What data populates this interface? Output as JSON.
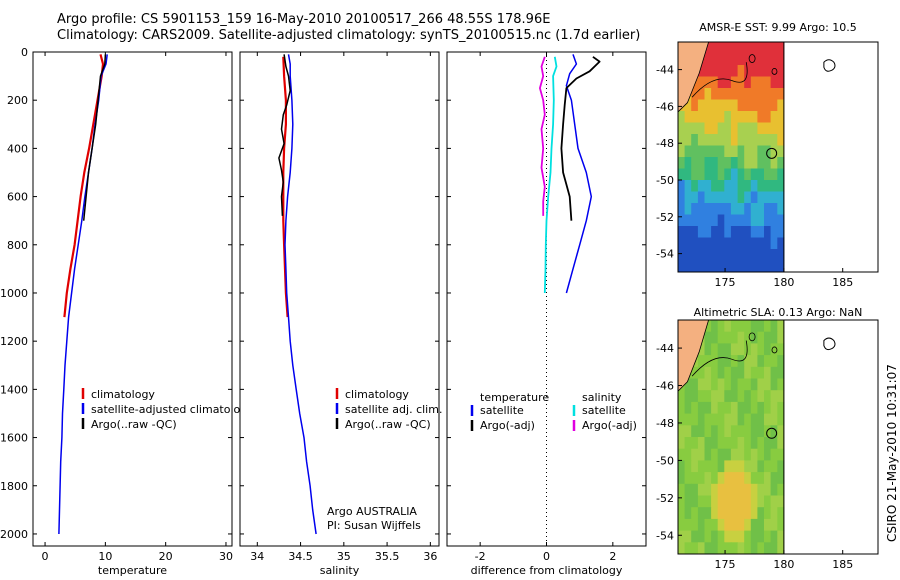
{
  "header": {
    "line1": "Argo profile: CS 5901153_159 16-May-2010 20100517_266 48.55S 178.96E",
    "line2": "Climatology: CARS2009. Satellite-adjusted climatology: synTS_20100515.nc (1.7d earlier)"
  },
  "attribution": {
    "program": "Argo AUSTRALIA",
    "pi": "PI: Susan Wijffels"
  },
  "stamp": "CSIRO 21-May-2010 10:31:07",
  "colors": {
    "red": "#e00000",
    "blue": "#0000ee",
    "black": "#000000",
    "cyan": "#00e0e0",
    "magenta": "#e000e0"
  },
  "chart_data": [
    {
      "type": "line",
      "id": "temperature",
      "xlabel": "temperature",
      "ylabel": "",
      "xlim": [
        -2,
        31
      ],
      "ylim": [
        2050,
        0
      ],
      "x_ticks": [
        0,
        10,
        20,
        30
      ],
      "y_ticks": [
        0,
        200,
        400,
        600,
        800,
        1000,
        1200,
        1400,
        1600,
        1800,
        2000
      ],
      "legend": {
        "placement": "lower-right",
        "entries": [
          "climatology",
          "satellite-adjusted climatology",
          "Argo(..raw -QC)"
        ]
      },
      "series": [
        {
          "name": "climatology",
          "color": "red",
          "width": 2.2,
          "points": [
            [
              9.2,
              10
            ],
            [
              9.6,
              50
            ],
            [
              9.4,
              100
            ],
            [
              8.7,
              200
            ],
            [
              8.0,
              300
            ],
            [
              7.3,
              400
            ],
            [
              6.5,
              500
            ],
            [
              5.9,
              600
            ],
            [
              5.4,
              700
            ],
            [
              4.9,
              800
            ],
            [
              4.2,
              900
            ],
            [
              3.6,
              1000
            ],
            [
              3.2,
              1100
            ]
          ]
        },
        {
          "name": "satellite-adjusted climatology",
          "color": "blue",
          "width": 1.5,
          "points": [
            [
              10.3,
              10
            ],
            [
              10.1,
              50
            ],
            [
              9.3,
              100
            ],
            [
              8.9,
              200
            ],
            [
              8.3,
              300
            ],
            [
              7.8,
              400
            ],
            [
              7.2,
              500
            ],
            [
              6.6,
              600
            ],
            [
              6.1,
              700
            ],
            [
              5.5,
              800
            ],
            [
              4.9,
              900
            ],
            [
              4.4,
              1000
            ],
            [
              3.9,
              1100
            ],
            [
              3.6,
              1200
            ],
            [
              3.3,
              1300
            ],
            [
              3.1,
              1400
            ],
            [
              2.9,
              1500
            ],
            [
              2.8,
              1600
            ],
            [
              2.6,
              1700
            ],
            [
              2.5,
              1800
            ],
            [
              2.4,
              1900
            ],
            [
              2.3,
              2000
            ]
          ]
        },
        {
          "name": "Argo(..raw -QC)",
          "color": "black",
          "width": 1.5,
          "points": [
            [
              10.0,
              10
            ],
            [
              9.9,
              50
            ],
            [
              9.2,
              100
            ],
            [
              8.8,
              200
            ],
            [
              8.4,
              300
            ],
            [
              7.8,
              400
            ],
            [
              7.2,
              500
            ],
            [
              6.8,
              600
            ],
            [
              6.4,
              700
            ]
          ]
        }
      ]
    },
    {
      "type": "line",
      "id": "salinity",
      "xlabel": "salinity",
      "ylabel": "",
      "xlim": [
        33.8,
        36.1
      ],
      "ylim": [
        2050,
        0
      ],
      "x_ticks": [
        34,
        34.5,
        35,
        35.5,
        36
      ],
      "legend": {
        "placement": "lower-right",
        "entries": [
          "climatology",
          "satellite adj. clim.",
          "Argo(..raw -QC)"
        ]
      },
      "series": [
        {
          "name": "climatology",
          "color": "red",
          "width": 2.2,
          "points": [
            [
              34.3,
              20
            ],
            [
              34.31,
              100
            ],
            [
              34.33,
              200
            ],
            [
              34.33,
              300
            ],
            [
              34.31,
              400
            ],
            [
              34.3,
              500
            ],
            [
              34.3,
              600
            ],
            [
              34.3,
              700
            ],
            [
              34.31,
              800
            ],
            [
              34.32,
              900
            ],
            [
              34.33,
              1000
            ],
            [
              34.35,
              1100
            ]
          ]
        },
        {
          "name": "satellite adj. clim.",
          "color": "blue",
          "width": 1.5,
          "points": [
            [
              34.36,
              10
            ],
            [
              34.38,
              50
            ],
            [
              34.38,
              100
            ],
            [
              34.4,
              200
            ],
            [
              34.41,
              300
            ],
            [
              34.4,
              400
            ],
            [
              34.38,
              500
            ],
            [
              34.35,
              600
            ],
            [
              34.33,
              700
            ],
            [
              34.32,
              800
            ],
            [
              34.33,
              900
            ],
            [
              34.34,
              1000
            ],
            [
              34.36,
              1100
            ],
            [
              34.38,
              1200
            ],
            [
              34.41,
              1300
            ],
            [
              34.45,
              1400
            ],
            [
              34.49,
              1500
            ],
            [
              34.54,
              1600
            ],
            [
              34.57,
              1700
            ],
            [
              34.61,
              1800
            ],
            [
              34.64,
              1900
            ],
            [
              34.68,
              2000
            ]
          ]
        },
        {
          "name": "Argo(..raw -QC)",
          "color": "black",
          "width": 1.5,
          "points": [
            [
              34.31,
              10
            ],
            [
              34.33,
              60
            ],
            [
              34.36,
              100
            ],
            [
              34.38,
              160
            ],
            [
              34.34,
              220
            ],
            [
              34.3,
              260
            ],
            [
              34.28,
              320
            ],
            [
              34.31,
              380
            ],
            [
              34.25,
              440
            ],
            [
              34.28,
              490
            ],
            [
              34.3,
              540
            ],
            [
              34.28,
              600
            ],
            [
              34.29,
              680
            ]
          ]
        }
      ]
    },
    {
      "type": "line",
      "id": "difference",
      "xlabel": "difference from climatology",
      "ylabel": "",
      "xlim": [
        -3,
        3
      ],
      "ylim": [
        2050,
        0
      ],
      "x_ticks": [
        -2,
        0,
        2
      ],
      "legend": {
        "placement": "lower-center",
        "headers": [
          "temperature",
          "salinity"
        ],
        "entries": [
          "satellite",
          "Argo(-adj)",
          "satellite",
          "Argo(-adj)"
        ]
      },
      "series": [
        {
          "name": "temperature satellite",
          "color": "blue",
          "width": 1.5,
          "points": [
            [
              0.8,
              10
            ],
            [
              0.9,
              50
            ],
            [
              0.7,
              90
            ],
            [
              0.6,
              140
            ],
            [
              0.75,
              200
            ],
            [
              0.85,
              300
            ],
            [
              0.95,
              400
            ],
            [
              1.2,
              500
            ],
            [
              1.35,
              600
            ],
            [
              1.2,
              700
            ],
            [
              1.0,
              800
            ],
            [
              0.8,
              900
            ],
            [
              0.6,
              1000
            ]
          ]
        },
        {
          "name": "temperature Argo(-adj)",
          "color": "black",
          "width": 1.8,
          "points": [
            [
              1.4,
              20
            ],
            [
              1.6,
              40
            ],
            [
              1.3,
              80
            ],
            [
              0.9,
              110
            ],
            [
              0.6,
              150
            ],
            [
              0.55,
              220
            ],
            [
              0.5,
              300
            ],
            [
              0.45,
              400
            ],
            [
              0.5,
              500
            ],
            [
              0.6,
              550
            ],
            [
              0.7,
              600
            ],
            [
              0.75,
              700
            ]
          ]
        },
        {
          "name": "salinity satellite",
          "color": "cyan",
          "width": 1.8,
          "points": [
            [
              0.25,
              20
            ],
            [
              0.3,
              60
            ],
            [
              0.2,
              100
            ],
            [
              0.22,
              200
            ],
            [
              0.2,
              300
            ],
            [
              0.15,
              400
            ],
            [
              0.12,
              500
            ],
            [
              0.05,
              600
            ],
            [
              0.0,
              700
            ],
            [
              -0.02,
              800
            ],
            [
              -0.03,
              900
            ],
            [
              -0.05,
              1000
            ]
          ]
        },
        {
          "name": "salinity Argo(-adj)",
          "color": "magenta",
          "width": 1.8,
          "points": [
            [
              -0.05,
              20
            ],
            [
              -0.15,
              60
            ],
            [
              -0.1,
              100
            ],
            [
              -0.2,
              150
            ],
            [
              -0.1,
              200
            ],
            [
              -0.05,
              260
            ],
            [
              -0.15,
              320
            ],
            [
              -0.1,
              400
            ],
            [
              -0.15,
              480
            ],
            [
              -0.05,
              560
            ],
            [
              -0.1,
              620
            ],
            [
              -0.1,
              680
            ]
          ]
        }
      ]
    },
    {
      "type": "heatmap",
      "id": "sst_map",
      "title": "AMSR-E SST: 9.99 Argo: 10.5",
      "xlim": [
        171,
        188
      ],
      "ylim": [
        -55,
        -42.5
      ],
      "x_ticks": [
        175,
        180,
        185
      ],
      "y_ticks": [
        -44,
        -46,
        -48,
        -50,
        -52,
        -54
      ],
      "float_position": [
        178.96,
        -48.55
      ]
    },
    {
      "type": "heatmap",
      "id": "sla_map",
      "title": "Altimetric SLA: 0.13 Argo: NaN",
      "xlim": [
        171,
        188
      ],
      "ylim": [
        -55,
        -42.5
      ],
      "x_ticks": [
        175,
        180,
        185
      ],
      "y_ticks": [
        -44,
        -46,
        -48,
        -50,
        -52,
        -54
      ],
      "float_position": [
        178.96,
        -48.55
      ]
    }
  ]
}
